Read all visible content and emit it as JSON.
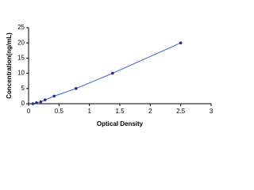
{
  "chart_data": {
    "type": "line",
    "x_label": "Optical Density",
    "y_label": "Concentration(ng/mL)",
    "x": [
      0.07,
      0.13,
      0.2,
      0.27,
      0.42,
      0.78,
      1.38,
      2.5
    ],
    "series": [
      {
        "color": "#1f2f8f",
        "values": [
          0,
          0.31,
          0.63,
          1.25,
          2.5,
          5,
          10,
          20
        ]
      }
    ],
    "xlim": [
      0,
      3
    ],
    "xticks": [
      0,
      0.5,
      1,
      1.5,
      2,
      2.5,
      3
    ],
    "ylim": [
      0,
      25
    ],
    "yticks": [
      0,
      5,
      10,
      15,
      20,
      25
    ],
    "markers": true
  }
}
